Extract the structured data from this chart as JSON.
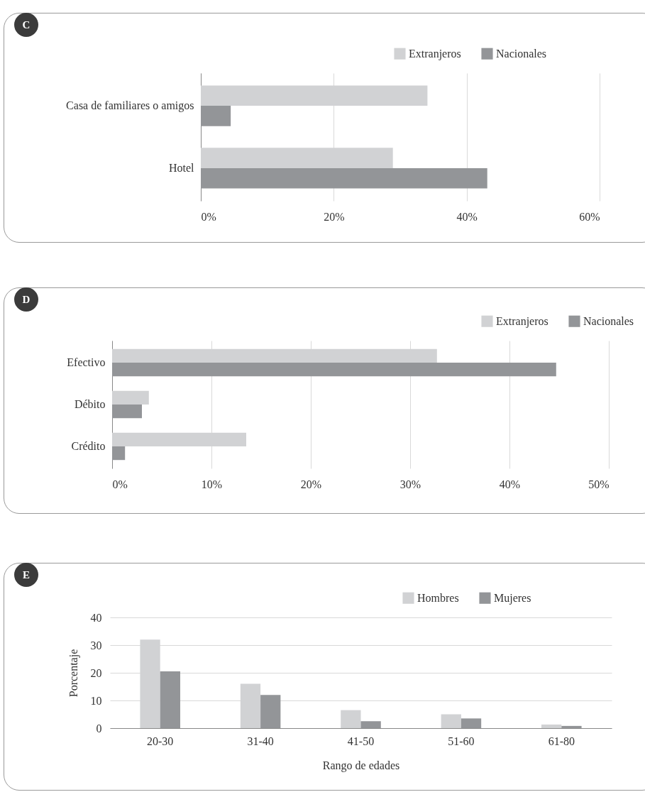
{
  "chart_data": [
    {
      "type": "bar",
      "title": "C",
      "orientation": "horizontal",
      "categories": [
        "Casa de familiares o amigos",
        "Hotel"
      ],
      "series": [
        {
          "name": "Extranjeros",
          "color": "#d1d2d4",
          "values": [
            34.1,
            28.9
          ]
        },
        {
          "name": "Nacionales",
          "color": "#939598",
          "values": [
            4.5,
            43.1
          ]
        }
      ],
      "xlim": [
        0,
        60
      ],
      "xticks": [
        {
          "value": 0,
          "label": "0%"
        },
        {
          "value": 20,
          "label": "20%"
        },
        {
          "value": 40,
          "label": "40%"
        },
        {
          "value": 60,
          "label": "60%"
        }
      ],
      "grid": "x",
      "legend": "top right"
    },
    {
      "type": "bar",
      "title": "D",
      "orientation": "horizontal",
      "categories": [
        "Efectivo",
        "Débito",
        "Crédito"
      ],
      "series": [
        {
          "name": "Extranjeros",
          "color": "#d1d2d4",
          "values": [
            32.7,
            3.7,
            13.5
          ]
        },
        {
          "name": "Nacionales",
          "color": "#939598",
          "values": [
            44.7,
            3.0,
            1.3
          ]
        }
      ],
      "xlim": [
        0,
        50
      ],
      "xticks": [
        {
          "value": 0,
          "label": "0%"
        },
        {
          "value": 10,
          "label": "10%"
        },
        {
          "value": 20,
          "label": "20%"
        },
        {
          "value": 30,
          "label": "30%"
        },
        {
          "value": 40,
          "label": "40%"
        },
        {
          "value": 50,
          "label": "50%"
        }
      ],
      "grid": "x",
      "legend": "top right"
    },
    {
      "type": "bar",
      "title": "E",
      "categories": [
        "20-30",
        "31-40",
        "41-50",
        "51-60",
        "61-80"
      ],
      "xlabel": "Rango de edades",
      "ylabel": "Porcentaje",
      "series": [
        {
          "name": "Hombres",
          "color": "#d1d2d4",
          "values": [
            32,
            16,
            6.5,
            5,
            1.3
          ]
        },
        {
          "name": "Mujeres",
          "color": "#939598",
          "values": [
            20.5,
            12,
            2.5,
            3.5,
            0.8
          ]
        }
      ],
      "ylim": [
        0,
        40
      ],
      "yticks": [
        0,
        10,
        20,
        30,
        40
      ],
      "grid": "y",
      "legend": "top right"
    }
  ]
}
